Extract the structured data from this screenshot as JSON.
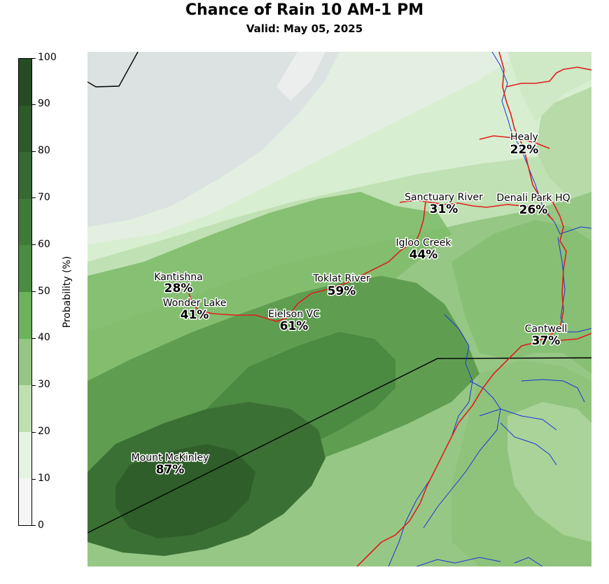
{
  "title": "Chance of Rain 10 AM-1 PM",
  "subtitle": "Valid: May 05, 2025",
  "colorbar": {
    "label": "Probability (%)",
    "ticks": [
      "0",
      "10",
      "20",
      "30",
      "40",
      "50",
      "60",
      "70",
      "80",
      "90",
      "100"
    ],
    "colors": [
      "#f5f5f5",
      "#e4f3df",
      "#bfe0b3",
      "#97c986",
      "#75b564",
      "#5a9e4e",
      "#4a8c42",
      "#3f7a39",
      "#356a30",
      "#2c5a28",
      "#254c22"
    ]
  },
  "locations": [
    {
      "name": "Healy",
      "value": "22%"
    },
    {
      "name": "Sanctuary River",
      "value": "31%"
    },
    {
      "name": "Denali Park HQ",
      "value": "26%"
    },
    {
      "name": "Igloo Creek",
      "value": "44%"
    },
    {
      "name": "Kantishna",
      "value": "28%"
    },
    {
      "name": "Toklat River",
      "value": "59%"
    },
    {
      "name": "Wonder Lake",
      "value": "41%"
    },
    {
      "name": "Eielson VC",
      "value": "61%"
    },
    {
      "name": "Cantwell",
      "value": "37%"
    },
    {
      "name": "Mount McKinley",
      "value": "87%"
    }
  ]
}
